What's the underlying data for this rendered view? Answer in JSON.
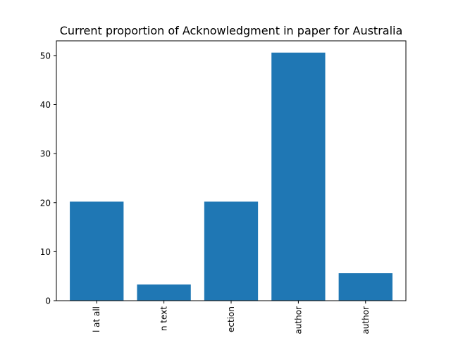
{
  "chart_data": {
    "type": "bar",
    "title": "Current proportion of Acknowledgment in paper for Australia",
    "xlabel": "",
    "ylabel": "",
    "categories": [
      "l at all",
      "n text",
      "ection",
      "author",
      "author"
    ],
    "values": [
      20.2,
      3.3,
      20.2,
      50.6,
      5.6
    ],
    "ylim": [
      0,
      53
    ],
    "yticks": [
      0,
      10,
      20,
      30,
      40,
      50
    ],
    "bar_color": "#1f77b4",
    "grid": false,
    "legend": "none"
  }
}
